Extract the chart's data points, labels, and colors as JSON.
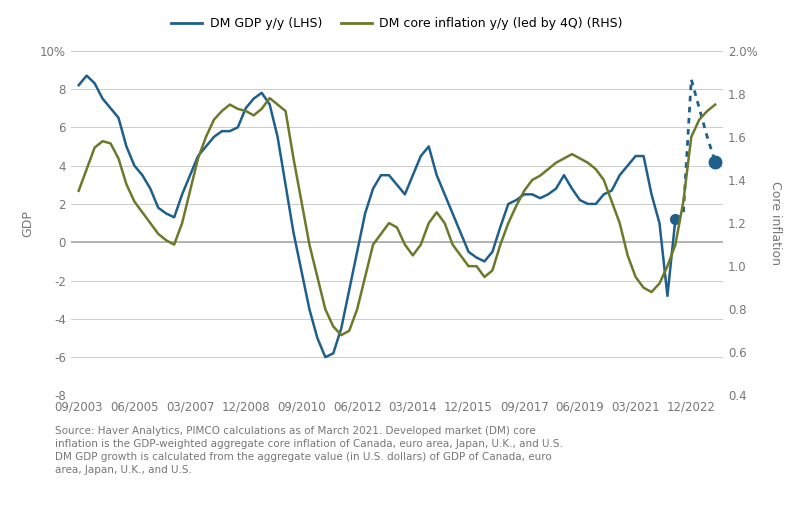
{
  "legend_labels": [
    "DM GDP y/y (LHS)",
    "DM core inflation y/y (led by 4Q) (RHS)"
  ],
  "gdp_color": "#1f5f8b",
  "inflation_color": "#6b7a2a",
  "ylabel_left": "GDP",
  "ylabel_right": "Core inflation",
  "source_text": "Source: Haver Analytics, PIMCO calculations as of March 2021. Developed market (DM) core\ninflation is the GDP-weighted aggregate core inflation of Canada, euro area, Japan, U.K., and U.S.\nDM GDP growth is calculated from the aggregate value (in U.S. dollars) of GDP of Canada, euro\narea, Japan, U.K., and U.S.",
  "x_tick_labels": [
    "09/2003",
    "06/2005",
    "03/2007",
    "12/2008",
    "09/2010",
    "06/2012",
    "03/2014",
    "12/2015",
    "09/2017",
    "06/2019",
    "03/2021",
    "12/2022"
  ],
  "x_tick_positions": [
    0,
    7,
    14,
    21,
    28,
    35,
    42,
    49,
    56,
    63,
    70,
    77
  ],
  "xlim": [
    -1,
    81
  ],
  "ylim_left": [
    -8,
    10
  ],
  "ylim_right": [
    0.4,
    2.0
  ],
  "yticks_left": [
    -8,
    -6,
    -4,
    -2,
    0,
    2,
    4,
    6,
    8,
    10
  ],
  "ytick_labels_left": [
    "-8",
    "-6",
    "-4",
    "-2",
    "0",
    "2",
    "4",
    "6",
    "8",
    "10%"
  ],
  "yticks_right": [
    0.4,
    0.6,
    0.8,
    1.0,
    1.2,
    1.4,
    1.6,
    1.8,
    2.0
  ],
  "ytick_labels_right": [
    "0.4",
    "0.6",
    "0.8",
    "1.0",
    "1.2",
    "1.4",
    "1.6",
    "1.8",
    "2.0%"
  ],
  "gdp_x": [
    0,
    1,
    2,
    3,
    4,
    5,
    6,
    7,
    8,
    9,
    10,
    11,
    12,
    13,
    14,
    15,
    16,
    17,
    18,
    19,
    20,
    21,
    22,
    23,
    24,
    25,
    26,
    27,
    28,
    29,
    30,
    31,
    32,
    33,
    34,
    35,
    36,
    37,
    38,
    39,
    40,
    41,
    42,
    43,
    44,
    45,
    46,
    47,
    48,
    49,
    50,
    51,
    52,
    53,
    54,
    55,
    56,
    57,
    58,
    59,
    60,
    61,
    62,
    63,
    64,
    65,
    66,
    67,
    68,
    69,
    70,
    71,
    72,
    73,
    74,
    75
  ],
  "gdp_y": [
    8.2,
    8.7,
    8.3,
    7.5,
    7.0,
    6.5,
    5.0,
    4.0,
    3.5,
    2.8,
    1.8,
    1.5,
    1.3,
    2.5,
    3.5,
    4.5,
    5.0,
    5.5,
    5.8,
    5.8,
    6.0,
    7.0,
    7.5,
    7.8,
    7.2,
    5.5,
    3.0,
    0.5,
    -1.5,
    -3.5,
    -5.0,
    -6.0,
    -5.8,
    -4.5,
    -2.5,
    -0.5,
    1.5,
    2.8,
    3.5,
    3.5,
    3.0,
    2.5,
    3.5,
    4.5,
    5.0,
    3.5,
    2.5,
    1.5,
    0.5,
    -0.5,
    -0.8,
    -1.0,
    -0.5,
    0.8,
    2.0,
    2.2,
    2.5,
    2.5,
    2.3,
    2.5,
    2.8,
    3.5,
    2.8,
    2.2,
    2.0,
    2.0,
    2.5,
    2.7,
    3.5,
    4.0,
    4.5,
    4.5,
    2.5,
    1.0,
    -2.8,
    1.2
  ],
  "gdp_solid_end": 76,
  "gdp_x_dotted": [
    75,
    76,
    77,
    78,
    79,
    80
  ],
  "gdp_y_dotted": [
    1.2,
    1.5,
    8.5,
    7.0,
    5.5,
    4.2
  ],
  "gdp_dot_start_idx": 0,
  "gdp_dot_end_idx": 5,
  "inflation_x": [
    0,
    1,
    2,
    3,
    4,
    5,
    6,
    7,
    8,
    9,
    10,
    11,
    12,
    13,
    14,
    15,
    16,
    17,
    18,
    19,
    20,
    21,
    22,
    23,
    24,
    25,
    26,
    27,
    28,
    29,
    30,
    31,
    32,
    33,
    34,
    35,
    36,
    37,
    38,
    39,
    40,
    41,
    42,
    43,
    44,
    45,
    46,
    47,
    48,
    49,
    50,
    51,
    52,
    53,
    54,
    55,
    56,
    57,
    58,
    59,
    60,
    61,
    62,
    63,
    64,
    65,
    66,
    67,
    68,
    69,
    70,
    71,
    72,
    73,
    74,
    75,
    76,
    77,
    78,
    79,
    80
  ],
  "inflation_y": [
    1.35,
    1.45,
    1.55,
    1.58,
    1.57,
    1.5,
    1.38,
    1.3,
    1.25,
    1.2,
    1.15,
    1.12,
    1.1,
    1.2,
    1.35,
    1.5,
    1.6,
    1.68,
    1.72,
    1.75,
    1.73,
    1.72,
    1.7,
    1.73,
    1.78,
    1.75,
    1.72,
    1.5,
    1.3,
    1.1,
    0.95,
    0.8,
    0.72,
    0.68,
    0.7,
    0.8,
    0.95,
    1.1,
    1.15,
    1.2,
    1.18,
    1.1,
    1.05,
    1.1,
    1.2,
    1.25,
    1.2,
    1.1,
    1.05,
    1.0,
    1.0,
    0.95,
    0.98,
    1.1,
    1.2,
    1.28,
    1.35,
    1.4,
    1.42,
    1.45,
    1.48,
    1.5,
    1.52,
    1.5,
    1.48,
    1.45,
    1.4,
    1.3,
    1.2,
    1.05,
    0.95,
    0.9,
    0.88,
    0.92,
    1.0,
    1.1,
    1.3,
    1.6,
    1.68,
    1.72,
    1.75
  ],
  "bg_color": "#ffffff",
  "grid_color": "#cccccc",
  "tick_label_color": "#777777",
  "axis_label_color": "#777777",
  "zero_line_color": "#aaaaaa",
  "font_size_ticks": 8.5,
  "font_size_legend": 9.0,
  "font_size_ylabel": 9.0,
  "font_size_source": 7.5
}
